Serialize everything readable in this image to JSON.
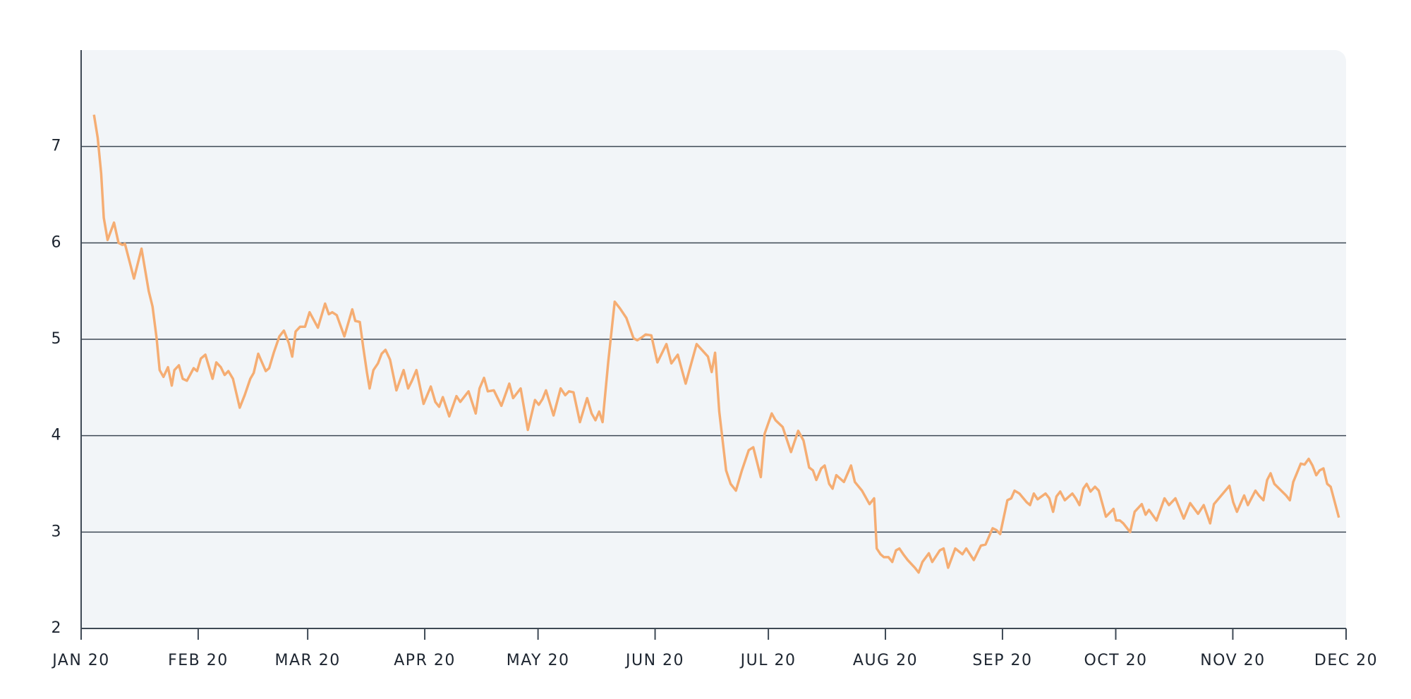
{
  "chart_data": {
    "type": "line",
    "x": [
      3.4,
      4.4,
      5.3,
      6,
      7,
      8.7,
      9.9,
      10.9,
      11.6,
      14,
      16,
      17.9,
      18.9,
      20,
      20.8,
      21.8,
      23,
      24,
      24.7,
      25.9,
      26.9,
      28,
      29.8,
      30.7,
      31.7,
      32.9,
      34.8,
      35.8,
      37,
      38,
      39,
      40.2,
      41.1,
      42,
      43.3,
      44.8,
      45.7,
      46.9,
      48.9,
      49.8,
      51,
      52.5,
      53.7,
      55,
      55.9,
      56.8,
      58,
      59.3,
      60.5,
      62.7,
      64.6,
      65.6,
      66.5,
      67.7,
      69.7,
      71.8,
      72.6,
      73.8,
      74.7,
      75.7,
      76.4,
      77.4,
      78.6,
      79.6,
      80.6,
      81.8,
      83.5,
      85.4,
      86.6,
      87.6,
      88.8,
      90.7,
      92.6,
      93.8,
      94.8,
      95.8,
      97.5,
      99.4,
      100.4,
      102.6,
      104.5,
      105.5,
      106.7,
      107.7,
      109.3,
      111.3,
      113.4,
      114.4,
      116.4,
      118.3,
      120.2,
      121.2,
      122.2,
      123.1,
      125.1,
      127,
      128.2,
      129.2,
      130.4,
      132.1,
      134,
      135.2,
      136.2,
      137.2,
      138.1,
      139.6,
      141.3,
      142.7,
      144.4,
      146.3,
      147.3,
      148.5,
      149.5,
      151,
      152.6,
      155,
      156.3,
      158,
      160.1,
      163,
      166,
      167,
      167.9,
      169,
      170.8,
      172,
      173.4,
      175,
      176.8,
      178,
      180,
      181,
      182.9,
      183.9,
      185.8,
      188,
      189.9,
      191.3,
      192.8,
      193.8,
      194.7,
      196,
      196.9,
      198.1,
      199,
      200,
      202,
      203.9,
      204.9,
      206.8,
      208.8,
      210,
      210.7,
      211.7,
      212.6,
      213.8,
      214.8,
      215.8,
      216.7,
      217.9,
      218.9,
      220.8,
      221.8,
      222.8,
      224.5,
      225.4,
      227.4,
      228.4,
      229.6,
      231.5,
      233.4,
      234.4,
      236.4,
      238.3,
      239.5,
      241.4,
      242.4,
      243.4,
      245.3,
      246.3,
      247.2,
      248.5,
      250.4,
      251.3,
      252.3,
      253.3,
      255.4,
      256.4,
      257.4,
      258.3,
      259.3,
      260.5,
      262.5,
      263.4,
      264.4,
      265.4,
      266.3,
      267.3,
      268.5,
      269.5,
      271.4,
      273.4,
      274.1,
      275.1,
      276,
      277.8,
      279,
      280.9,
      281.9,
      282.8,
      284.8,
      286.9,
      288.1,
      289.8,
      292,
      293.7,
      295.8,
      297.3,
      299,
      300,
      304.1,
      305.1,
      306.1,
      308,
      309,
      311,
      311.9,
      313.1,
      314.1,
      315,
      316,
      319.1,
      320.1,
      321,
      323,
      324,
      325.1,
      326.1,
      327.1,
      328,
      329,
      330,
      330.9,
      333.1
    ],
    "series": [
      {
        "color": "#f5ad73",
        "values": [
          7.33,
          7.09,
          6.72,
          6.26,
          6.03,
          6.21,
          6.0,
          5.98,
          5.99,
          5.63,
          5.94,
          5.5,
          5.34,
          5.01,
          4.68,
          4.61,
          4.71,
          4.52,
          4.68,
          4.73,
          4.59,
          4.57,
          4.7,
          4.67,
          4.8,
          4.84,
          4.59,
          4.76,
          4.71,
          4.63,
          4.67,
          4.59,
          4.44,
          4.29,
          4.42,
          4.59,
          4.65,
          4.85,
          4.67,
          4.7,
          4.86,
          5.03,
          5.09,
          4.96,
          4.82,
          5.08,
          5.13,
          5.13,
          5.28,
          5.12,
          5.37,
          5.26,
          5.28,
          5.25,
          5.03,
          5.31,
          5.19,
          5.18,
          4.92,
          4.65,
          4.49,
          4.68,
          4.75,
          4.85,
          4.89,
          4.79,
          4.47,
          4.68,
          4.49,
          4.57,
          4.68,
          4.33,
          4.51,
          4.35,
          4.3,
          4.4,
          4.2,
          4.41,
          4.35,
          4.46,
          4.23,
          4.49,
          4.6,
          4.46,
          4.47,
          4.31,
          4.54,
          4.39,
          4.49,
          4.06,
          4.37,
          4.32,
          4.38,
          4.47,
          4.21,
          4.49,
          4.42,
          4.46,
          4.45,
          4.14,
          4.39,
          4.23,
          4.16,
          4.25,
          4.14,
          4.77,
          5.39,
          5.32,
          5.22,
          5.01,
          4.99,
          5.02,
          5.05,
          5.04,
          4.76,
          4.95,
          4.75,
          4.84,
          4.54,
          4.95,
          4.82,
          4.66,
          4.86,
          4.25,
          3.64,
          3.5,
          3.43,
          3.64,
          3.85,
          3.88,
          3.57,
          4.02,
          4.23,
          4.16,
          4.09,
          3.83,
          4.05,
          3.95,
          3.67,
          3.64,
          3.54,
          3.66,
          3.69,
          3.5,
          3.45,
          3.59,
          3.52,
          3.69,
          3.52,
          3.43,
          3.29,
          3.35,
          2.83,
          2.77,
          2.74,
          2.74,
          2.69,
          2.81,
          2.83,
          2.76,
          2.71,
          2.63,
          2.58,
          2.69,
          2.78,
          2.69,
          2.81,
          2.83,
          2.63,
          2.83,
          2.77,
          2.83,
          2.71,
          2.86,
          2.87,
          3.04,
          3.02,
          2.98,
          3.33,
          3.35,
          3.43,
          3.4,
          3.31,
          3.28,
          3.4,
          3.34,
          3.4,
          3.35,
          3.21,
          3.37,
          3.42,
          3.33,
          3.4,
          3.35,
          3.28,
          3.45,
          3.5,
          3.42,
          3.47,
          3.43,
          3.16,
          3.24,
          3.12,
          3.12,
          3.09,
          3.0,
          3.21,
          3.29,
          3.18,
          3.23,
          3.12,
          3.35,
          3.28,
          3.35,
          3.14,
          3.3,
          3.19,
          3.28,
          3.09,
          3.29,
          3.48,
          3.31,
          3.21,
          3.38,
          3.28,
          3.43,
          3.38,
          3.33,
          3.54,
          3.61,
          3.5,
          3.38,
          3.33,
          3.52,
          3.71,
          3.7,
          3.76,
          3.69,
          3.59,
          3.64,
          3.66,
          3.5,
          3.47,
          3.15
        ]
      }
    ],
    "xlim": [
      0,
      335
    ],
    "xticks": [
      {
        "value": 0,
        "label": "JAN 20"
      },
      {
        "value": 31,
        "label": "FEB 20"
      },
      {
        "value": 60,
        "label": "MAR 20"
      },
      {
        "value": 91,
        "label": "APR 20"
      },
      {
        "value": 121,
        "label": "MAY 20"
      },
      {
        "value": 152,
        "label": "JUN 20"
      },
      {
        "value": 182,
        "label": "JUL 20"
      },
      {
        "value": 213,
        "label": "AUG 20"
      },
      {
        "value": 244,
        "label": "SEP 20"
      },
      {
        "value": 274,
        "label": "OCT 20"
      },
      {
        "value": 305,
        "label": "NOV 20"
      },
      {
        "value": 335,
        "label": "DEC 20"
      }
    ],
    "ylim": [
      2,
      8
    ],
    "yticks": [
      2,
      3,
      4,
      5,
      6,
      7
    ],
    "grid": true
  }
}
